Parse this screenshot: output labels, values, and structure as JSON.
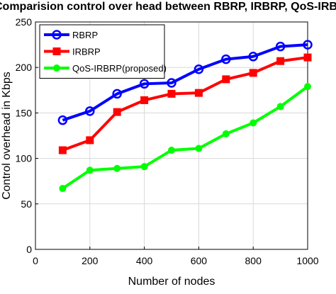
{
  "chart_data": {
    "type": "line",
    "title": "Comparision control over head between RBRP, IRBRP, QoS-IRBRP",
    "xlabel": "Number of nodes",
    "ylabel": "Control overhead in Kbps",
    "xlim": [
      0,
      1000
    ],
    "ylim": [
      0,
      250
    ],
    "x_ticks": [
      0,
      200,
      400,
      600,
      800,
      1000
    ],
    "y_ticks": [
      0,
      50,
      100,
      150,
      200,
      250
    ],
    "grid": true,
    "legend_position": "top-left",
    "x": [
      100,
      200,
      300,
      400,
      500,
      600,
      700,
      800,
      900,
      1000
    ],
    "series": [
      {
        "name": "RBRP",
        "color": "#0000ff",
        "marker": "circle",
        "values": [
          142,
          152,
          171,
          182,
          183,
          198,
          209,
          212,
          223,
          225
        ]
      },
      {
        "name": "IRBRP",
        "color": "#ff0000",
        "marker": "square",
        "values": [
          109,
          120,
          151,
          164,
          171,
          172,
          187,
          194,
          207,
          211
        ]
      },
      {
        "name": "QoS-IRBRP(proposed)",
        "color": "#00ff00",
        "marker": "dot",
        "values": [
          67,
          87,
          89,
          91,
          109,
          111,
          127,
          139,
          157,
          179
        ]
      }
    ]
  }
}
